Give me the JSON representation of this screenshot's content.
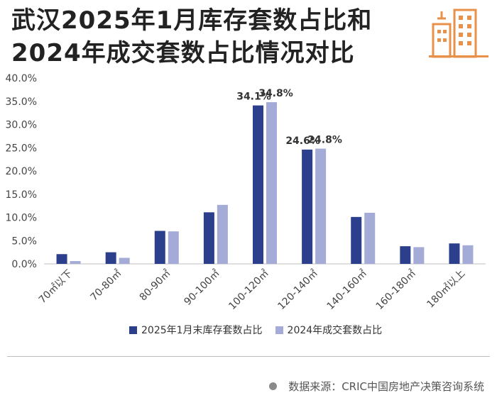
{
  "title": {
    "line1": "武汉2025年1月库存套数占比和",
    "line2": "2024年成交套数占比情况对比"
  },
  "logo_icon": "city-buildings-icon",
  "colors": {
    "series1": "#2b3f8c",
    "series2": "#a3abd6",
    "logo": "#e8914a"
  },
  "chart_data": {
    "type": "bar",
    "categories": [
      "70㎡以下",
      "70-80㎡",
      "80-90㎡",
      "90-100㎡",
      "100-120㎡",
      "120-140㎡",
      "140-160㎡",
      "160-180㎡",
      "180㎡以上"
    ],
    "series": [
      {
        "name": "2025年1月末库存套数占比",
        "values": [
          2.1,
          2.5,
          7.1,
          11.1,
          34.1,
          24.6,
          10.1,
          3.8,
          4.4
        ]
      },
      {
        "name": "2024年成交套数占比",
        "values": [
          0.6,
          1.3,
          7.0,
          12.7,
          34.8,
          24.8,
          11.0,
          3.6,
          4.0
        ]
      }
    ],
    "data_labels": [
      {
        "series": 0,
        "index": 4,
        "text": "34.1%"
      },
      {
        "series": 1,
        "index": 4,
        "text": "34.8%"
      },
      {
        "series": 0,
        "index": 5,
        "text": "24.6%"
      },
      {
        "series": 1,
        "index": 5,
        "text": "24.8%"
      }
    ],
    "yticks": [
      "0.0%",
      "5.0%",
      "10.0%",
      "15.0%",
      "20.0%",
      "25.0%",
      "30.0%",
      "35.0%",
      "40.0%"
    ],
    "ylim": [
      0,
      40
    ],
    "grid": false,
    "legend_position": "bottom"
  },
  "legend": {
    "item1": "2025年1月末库存套数占比",
    "item2": "2024年成交套数占比"
  },
  "source": "数据来源：CRIC中国房地产决策咨询系统"
}
